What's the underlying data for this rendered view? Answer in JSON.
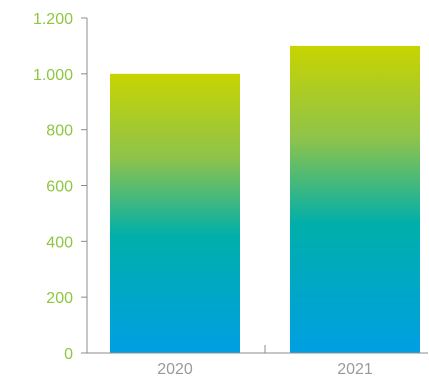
{
  "chart_data": {
    "type": "bar",
    "categories": [
      "2020",
      "2021"
    ],
    "values": [
      1000,
      1100
    ],
    "ylim": [
      0,
      1200
    ],
    "yticks": [
      0,
      200,
      400,
      600,
      800,
      1000,
      1200
    ],
    "ytick_labels": [
      "0",
      "200",
      "400",
      "600",
      "800",
      "1.000",
      "1.200"
    ],
    "grid": false,
    "legend": "none",
    "colors": {
      "bar_top": "#c8d400",
      "bar_middle": "#00afaa",
      "bar_bottom": "#009fe3",
      "ytick_text": "#8dc63f",
      "xtick_text": "#9a9a9a",
      "axis": "#8c8c8c"
    }
  }
}
